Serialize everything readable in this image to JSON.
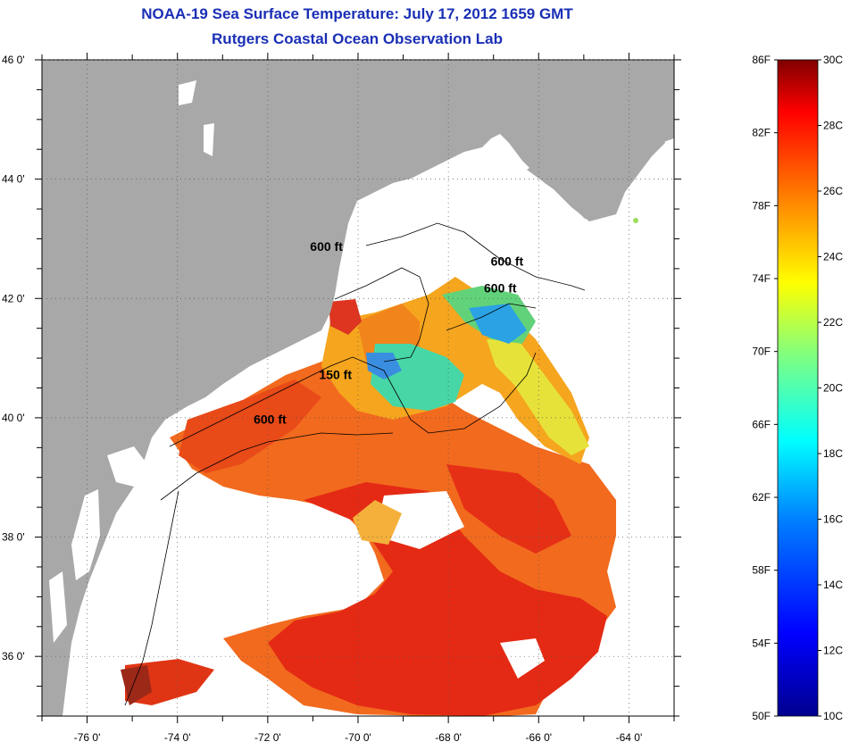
{
  "title": "NOAA-19 Sea Surface Temperature:  July 17, 2012 1659 GMT",
  "subtitle": "Rutgers Coastal Ocean Observation Lab",
  "map": {
    "lon_range": [
      -77,
      -63
    ],
    "lat_range": [
      35,
      46
    ],
    "lon_ticks": [
      -76,
      -74,
      -72,
      -70,
      -68,
      -66,
      -64
    ],
    "lon_tick_labels": [
      "-76 0'",
      "-74 0'",
      "-72 0'",
      "-70 0'",
      "-68 0'",
      "-66 0'",
      "-64 0'"
    ],
    "lat_ticks": [
      36,
      38,
      40,
      42,
      44,
      46
    ],
    "lat_tick_labels": [
      "36 0'",
      "38 0'",
      "40 0'",
      "42 0'",
      "44 0'",
      "46 0'"
    ],
    "land_color": "#a8a8a8",
    "grid": "dotted",
    "contours": [
      {
        "label": "600 ft",
        "lon": -70.7,
        "lat": 42.8
      },
      {
        "label": "600 ft",
        "lon": -66.7,
        "lat": 42.55
      },
      {
        "label": "600 ft",
        "lon": -66.85,
        "lat": 42.1
      },
      {
        "label": "150 ft",
        "lon": -70.5,
        "lat": 40.65
      },
      {
        "label": "600 ft",
        "lon": -71.95,
        "lat": 39.9
      }
    ]
  },
  "colorbar": {
    "min_c": 10,
    "max_c": 30,
    "f_labels": [
      "86F",
      "82F",
      "78F",
      "74F",
      "70F",
      "66F",
      "62F",
      "58F",
      "54F",
      "50F"
    ],
    "c_labels": [
      "30C",
      "28C",
      "26C",
      "24C",
      "22C",
      "20C",
      "18C",
      "16C",
      "14C",
      "12C",
      "10C"
    ],
    "colors": [
      "#00008f",
      "#0000ff",
      "#0080ff",
      "#00ffff",
      "#80ff80",
      "#ffff00",
      "#ff8000",
      "#ff0000",
      "#800000"
    ]
  }
}
